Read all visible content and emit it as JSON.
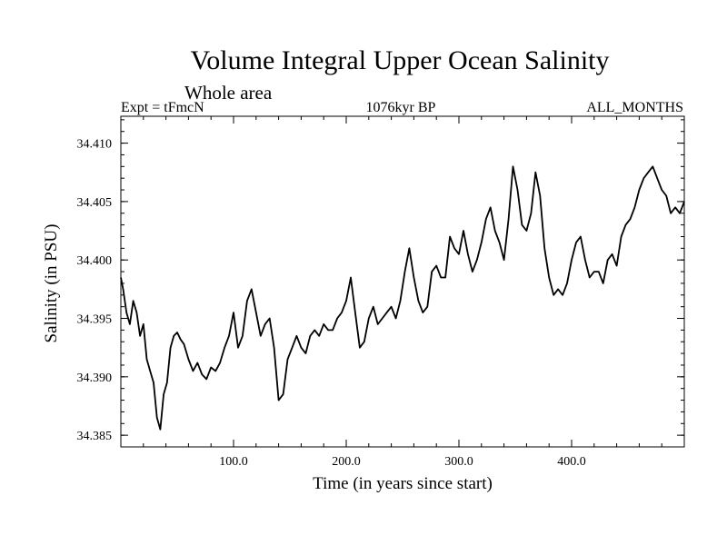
{
  "chart_data": {
    "type": "line",
    "title": "Volume Integral Upper Ocean Salinity",
    "subtitle": "Whole area",
    "header_left": "Expt = tFmcN",
    "header_center": "1076kyr BP",
    "header_right": "ALL_MONTHS",
    "xlabel": "Time (in years since start)",
    "ylabel": "Salinity (in PSU)",
    "xlim": [
      0,
      500
    ],
    "ylim": [
      34.384,
      34.4123
    ],
    "x_ticks": [
      100,
      200,
      300,
      400
    ],
    "x_tick_labels": [
      "100.0",
      "200.0",
      "300.0",
      "400.0"
    ],
    "y_ticks": [
      34.385,
      34.39,
      34.395,
      34.4,
      34.405,
      34.41
    ],
    "y_tick_labels": [
      "34.385",
      "34.390",
      "34.395",
      "34.400",
      "34.405",
      "34.410"
    ],
    "grid": false,
    "series": [
      {
        "name": "Salinity",
        "x": [
          0,
          2,
          5,
          8,
          11,
          14,
          17,
          20,
          23,
          26,
          29,
          32,
          35,
          38,
          41,
          44,
          47,
          50,
          53,
          56,
          60,
          64,
          68,
          72,
          76,
          80,
          84,
          88,
          92,
          96,
          100,
          104,
          108,
          112,
          116,
          120,
          124,
          128,
          132,
          136,
          140,
          144,
          148,
          152,
          156,
          160,
          164,
          168,
          172,
          176,
          180,
          184,
          188,
          192,
          196,
          200,
          204,
          208,
          212,
          216,
          220,
          224,
          228,
          232,
          236,
          240,
          244,
          248,
          252,
          256,
          260,
          264,
          268,
          272,
          276,
          280,
          284,
          288,
          292,
          296,
          300,
          304,
          308,
          312,
          316,
          320,
          324,
          328,
          332,
          336,
          340,
          344,
          348,
          352,
          356,
          360,
          364,
          368,
          372,
          376,
          380,
          384,
          388,
          392,
          396,
          400,
          404,
          408,
          412,
          416,
          420,
          424,
          428,
          432,
          436,
          440,
          444,
          448,
          452,
          456,
          460,
          464,
          468,
          472,
          476,
          480,
          484,
          488,
          492,
          496,
          500
        ],
        "values": [
          34.3985,
          34.3975,
          34.3955,
          34.3945,
          34.3965,
          34.3955,
          34.3935,
          34.3945,
          34.3915,
          34.3905,
          34.3895,
          34.3865,
          34.3855,
          34.3885,
          34.3895,
          34.3925,
          34.3935,
          34.3938,
          34.3932,
          34.3928,
          34.3915,
          34.3905,
          34.3912,
          34.3902,
          34.3898,
          34.3908,
          34.3905,
          34.3912,
          34.3925,
          34.3935,
          34.3955,
          34.3925,
          34.3935,
          34.3965,
          34.3975,
          34.3955,
          34.3935,
          34.3945,
          34.395,
          34.3925,
          34.388,
          34.3885,
          34.3915,
          34.3925,
          34.3935,
          34.3925,
          34.392,
          34.3935,
          34.394,
          34.3935,
          34.3945,
          34.394,
          34.394,
          34.395,
          34.3955,
          34.3965,
          34.3985,
          34.3955,
          34.3925,
          34.393,
          34.395,
          34.396,
          34.3945,
          34.395,
          34.3955,
          34.396,
          34.395,
          34.3965,
          34.399,
          34.401,
          34.3985,
          34.3965,
          34.3955,
          34.396,
          34.399,
          34.3995,
          34.3985,
          34.3985,
          34.402,
          34.401,
          34.4005,
          34.4025,
          34.4005,
          34.399,
          34.4,
          34.4015,
          34.4035,
          34.4045,
          34.4025,
          34.4015,
          34.4,
          34.4035,
          34.408,
          34.406,
          34.403,
          34.4025,
          34.404,
          34.4075,
          34.4055,
          34.401,
          34.3985,
          34.397,
          34.3975,
          34.397,
          34.398,
          34.4,
          34.4015,
          34.402,
          34.4,
          34.3985,
          34.399,
          34.399,
          34.398,
          34.4,
          34.4005,
          34.3995,
          34.402,
          34.403,
          34.4035,
          34.4045,
          34.406,
          34.407,
          34.4075,
          34.408,
          34.407,
          34.406,
          34.4055,
          34.404,
          34.4045,
          34.404,
          34.405
        ]
      }
    ]
  }
}
